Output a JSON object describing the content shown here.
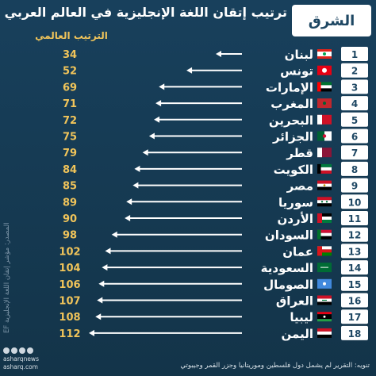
{
  "header": {
    "title": "ترتيب إتقان اللغة الإنجليزية في العالم العربي",
    "logo_text": "الشرق"
  },
  "chart_data": {
    "type": "bar",
    "orientation": "horizontal",
    "subtitle": "الترتيب العالمي",
    "xlim": [
      0,
      112
    ],
    "rows": [
      {
        "rank": "1",
        "country": "لبنان",
        "value": 34,
        "flag": "lebanon-flag"
      },
      {
        "rank": "2",
        "country": "تونس",
        "value": 52,
        "flag": "tunisia-flag"
      },
      {
        "rank": "3",
        "country": "الإمارات",
        "value": 69,
        "flag": "uae-flag"
      },
      {
        "rank": "4",
        "country": "المغرب",
        "value": 71,
        "flag": "morocco-flag"
      },
      {
        "rank": "5",
        "country": "البحرين",
        "value": 72,
        "flag": "bahrain-flag"
      },
      {
        "rank": "6",
        "country": "الجزائر",
        "value": 75,
        "flag": "algeria-flag"
      },
      {
        "rank": "7",
        "country": "قطر",
        "value": 79,
        "flag": "qatar-flag"
      },
      {
        "rank": "8",
        "country": "الكويت",
        "value": 84,
        "flag": "kuwait-flag"
      },
      {
        "rank": "9",
        "country": "مصر",
        "value": 85,
        "flag": "egypt-flag"
      },
      {
        "rank": "10",
        "country": "سوريا",
        "value": 89,
        "flag": "syria-flag"
      },
      {
        "rank": "11",
        "country": "الأردن",
        "value": 90,
        "flag": "jordan-flag"
      },
      {
        "rank": "12",
        "country": "السودان",
        "value": 98,
        "flag": "sudan-flag"
      },
      {
        "rank": "13",
        "country": "عمان",
        "value": 102,
        "flag": "oman-flag"
      },
      {
        "rank": "14",
        "country": "السعودية",
        "value": 104,
        "flag": "saudi-flag"
      },
      {
        "rank": "15",
        "country": "الصومال",
        "value": 106,
        "flag": "somalia-flag"
      },
      {
        "rank": "16",
        "country": "العراق",
        "value": 107,
        "flag": "iraq-flag"
      },
      {
        "rank": "17",
        "country": "ليبيا",
        "value": 108,
        "flag": "libya-flag"
      },
      {
        "rank": "18",
        "country": "اليمن",
        "value": 112,
        "flag": "yemen-flag"
      }
    ]
  },
  "colors": {
    "background": "#14374f",
    "rank_value": "#f0c45a",
    "row_number": "#1e4763",
    "arrow": "#ffffff"
  },
  "footer": {
    "source": "المصدر: مؤشر إتقان اللغة الإنجليزية EF",
    "handle_top": "asharqnews",
    "handle_bottom": "asharq.com",
    "note": "تنويه: التقرير لم يشمل دول فلسطين وموريتانيا وجزر القمر وجيبوتي"
  }
}
